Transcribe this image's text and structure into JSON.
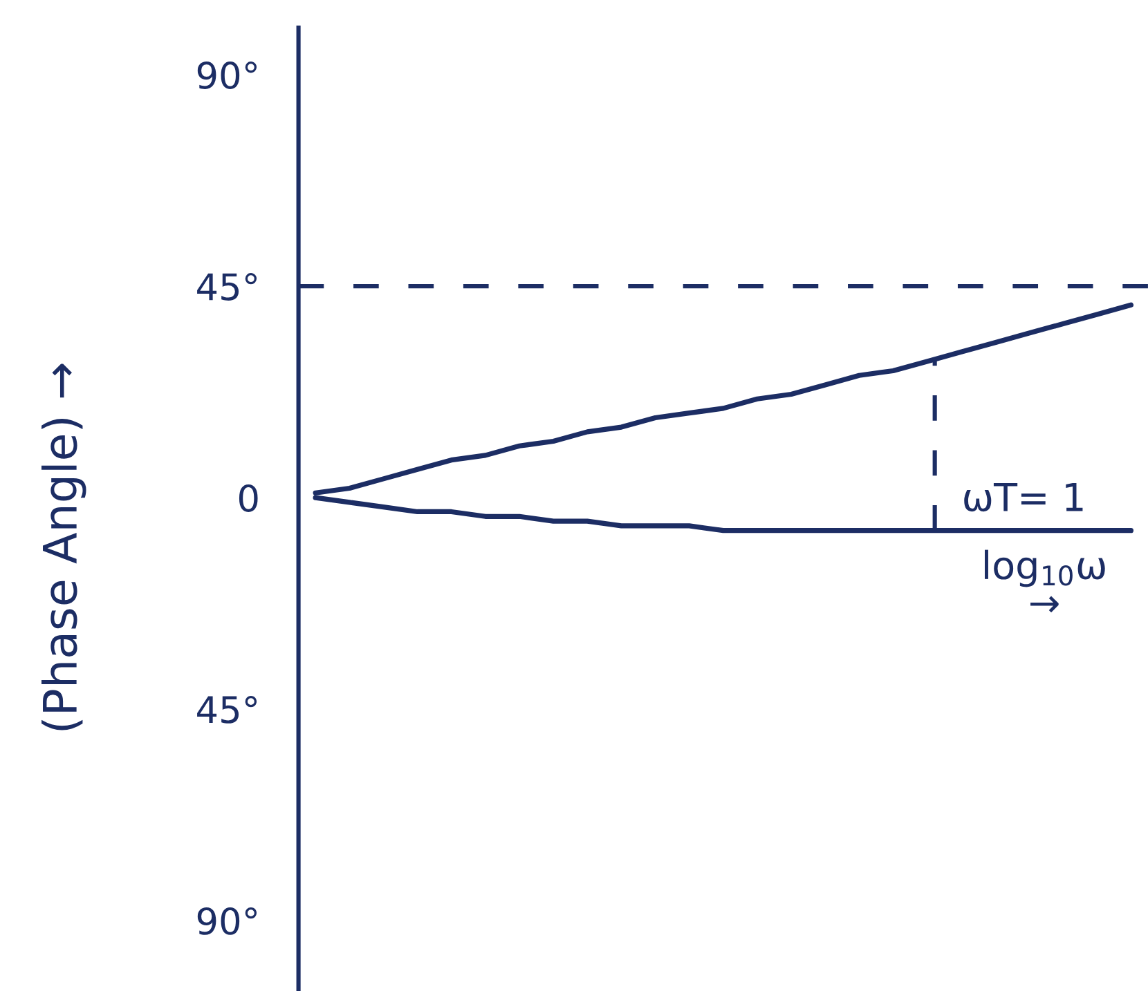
{
  "chart_data": {
    "type": "line",
    "xlabel": "log$_{10}$ω\n→",
    "ylabel": "(Phase Angle) →",
    "categories": [
      null,
      null,
      null,
      null,
      null,
      null,
      null,
      null,
      null,
      null,
      null,
      null,
      null,
      null,
      null,
      null,
      null,
      null,
      null,
      null,
      null,
      null,
      null,
      null,
      null
    ],
    "series": [
      {
        "color": "#1c2d64",
        "values": [
          1,
          2,
          4,
          6,
          8,
          9,
          11,
          12,
          14,
          15,
          17,
          18,
          19,
          21,
          22,
          24,
          26,
          27,
          29,
          31,
          33,
          35,
          37,
          39,
          41
        ]
      },
      {
        "color": "#1c2d64",
        "values": [
          0,
          -1,
          -2,
          -3,
          -3,
          -4,
          -4,
          -5,
          -5,
          -6,
          -6,
          -6,
          -7,
          -7,
          -7,
          -7,
          -7,
          -7,
          -7,
          -7,
          -7,
          -7,
          -7,
          -7,
          -7
        ]
      }
    ],
    "ylim": [
      -105,
      100
    ],
    "yticks": [
      {
        "value": 90,
        "label": "90°"
      },
      {
        "value": 45,
        "label": "45°"
      },
      0,
      {
        "value": -45,
        "label": "45°"
      },
      {
        "value": -90,
        "label": "90°"
      }
    ],
    "ref_lines": [
      {
        "axis": "y",
        "value": 45,
        "line_style": "dashed",
        "color": "#1c2d64"
      }
    ],
    "annotations": [
      "ωT= 1"
    ],
    "tick_labels": "y",
    "line_style": "solid"
  }
}
